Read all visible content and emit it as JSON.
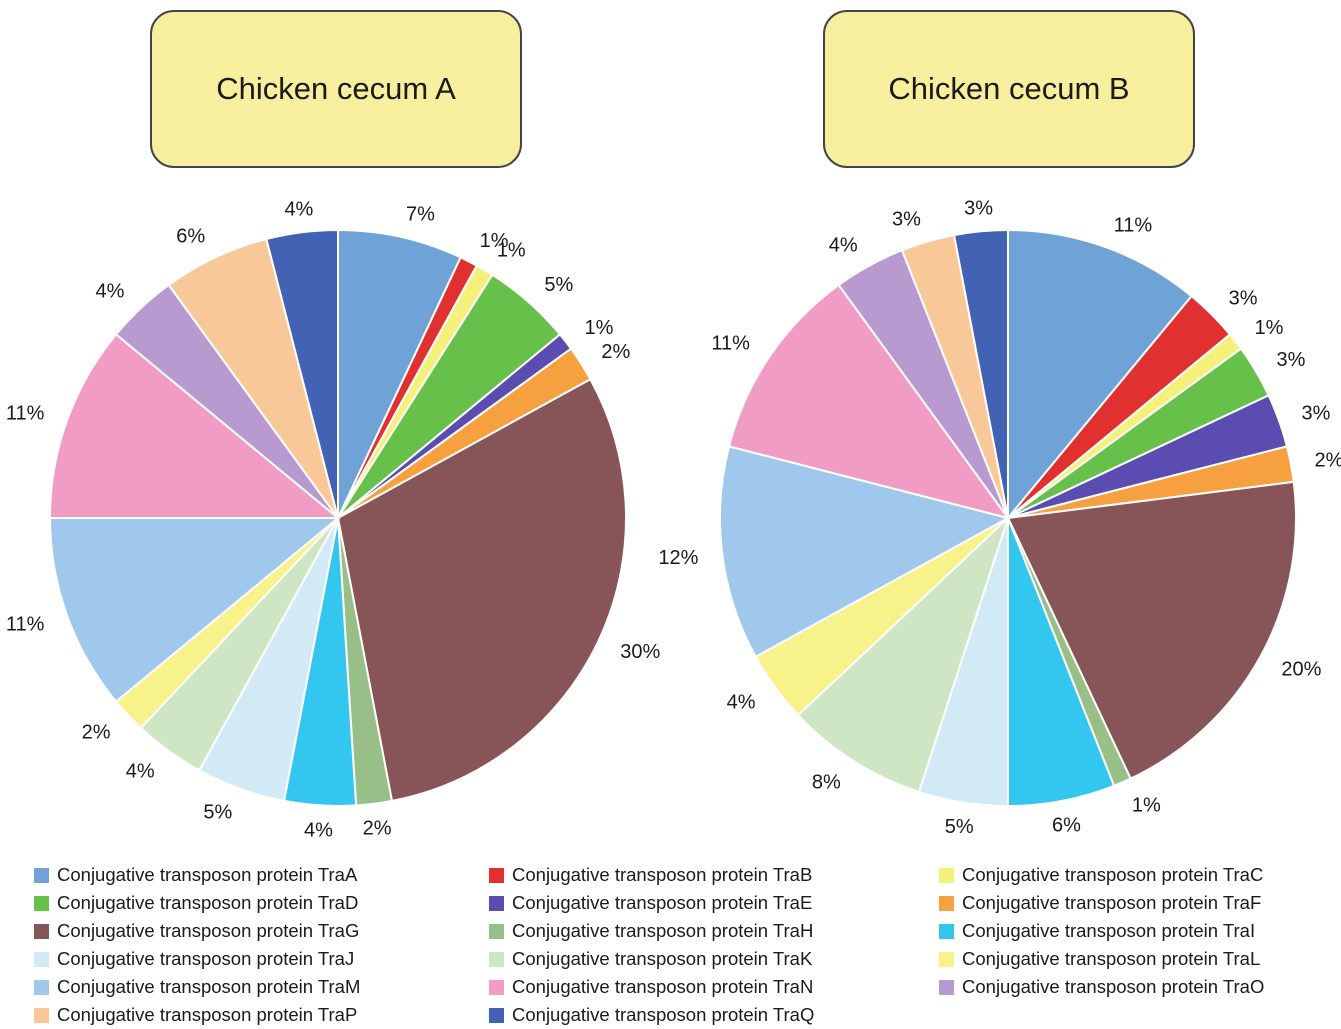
{
  "chart_data": [
    {
      "type": "pie",
      "title": "Chicken cecum A",
      "categories": [
        "Conjugative transposon protein TraA",
        "Conjugative transposon protein TraB",
        "Conjugative transposon protein TraC",
        "Conjugative transposon protein TraD",
        "Conjugative transposon protein TraE",
        "Conjugative transposon protein TraF",
        "Conjugative transposon protein TraG",
        "Conjugative transposon protein TraH",
        "Conjugative transposon protein TraI",
        "Conjugative transposon protein TraJ",
        "Conjugative transposon protein TraK",
        "Conjugative transposon protein TraL",
        "Conjugative transposon protein TraM",
        "Conjugative transposon protein TraN",
        "Conjugative transposon protein TraO",
        "Conjugative transposon protein TraP",
        "Conjugative transposon protein TraQ"
      ],
      "values": [
        7,
        1,
        1,
        5,
        1,
        2,
        30,
        2,
        4,
        5,
        4,
        2,
        11,
        11,
        4,
        6,
        4
      ],
      "labels": [
        "7%",
        "1%",
        "1%",
        "5%",
        "1%",
        "2%",
        "30%",
        "2%",
        "4%",
        "5%",
        "4%",
        "2%",
        "11%",
        "11%",
        "4%",
        "6%",
        "4%"
      ]
    },
    {
      "type": "pie",
      "title": "Chicken cecum B",
      "categories": [
        "Conjugative transposon protein TraA",
        "Conjugative transposon protein TraB",
        "Conjugative transposon protein TraC",
        "Conjugative transposon protein TraD",
        "Conjugative transposon protein TraE",
        "Conjugative transposon protein TraF",
        "Conjugative transposon protein TraG",
        "Conjugative transposon protein TraH",
        "Conjugative transposon protein TraI",
        "Conjugative transposon protein TraJ",
        "Conjugative transposon protein TraK",
        "Conjugative transposon protein TraL",
        "Conjugative transposon protein TraM",
        "Conjugative transposon protein TraN",
        "Conjugative transposon protein TraO",
        "Conjugative transposon protein TraP",
        "Conjugative transposon protein TraQ"
      ],
      "values": [
        11,
        3,
        1,
        3,
        3,
        2,
        20,
        1,
        6,
        5,
        8,
        4,
        12,
        11,
        4,
        3,
        3
      ],
      "labels": [
        "11%",
        "3%",
        "1%",
        "3%",
        "3%",
        "2%",
        "20%",
        "1%",
        "6%",
        "5%",
        "8%",
        "4%",
        "12%",
        "11%",
        "4%",
        "3%",
        "3%"
      ]
    }
  ],
  "colors": [
    "#6fa3d8",
    "#e03030",
    "#f5f07a",
    "#66c04a",
    "#5a4cb0",
    "#f7a040",
    "#875457",
    "#99bf88",
    "#33c6ee",
    "#d2eaf6",
    "#cfe6c4",
    "#f7f28a",
    "#a0c8ec",
    "#f09cc4",
    "#b89ad0",
    "#f9c898",
    "#4262b4"
  ],
  "legend": {
    "items": [
      {
        "label": "Conjugative transposon protein TraA",
        "color": "#6fa3d8"
      },
      {
        "label": "Conjugative transposon protein TraB",
        "color": "#e03030"
      },
      {
        "label": "Conjugative transposon protein TraC",
        "color": "#f5f07a"
      },
      {
        "label": "Conjugative transposon protein TraD",
        "color": "#66c04a"
      },
      {
        "label": "Conjugative transposon protein TraE",
        "color": "#5a4cb0"
      },
      {
        "label": "Conjugative transposon protein TraF",
        "color": "#f7a040"
      },
      {
        "label": "Conjugative transposon protein TraG",
        "color": "#875457"
      },
      {
        "label": "Conjugative transposon protein TraH",
        "color": "#99bf88"
      },
      {
        "label": "Conjugative transposon protein TraI",
        "color": "#33c6ee"
      },
      {
        "label": "Conjugative transposon protein TraJ",
        "color": "#d2eaf6"
      },
      {
        "label": "Conjugative transposon protein TraK",
        "color": "#cfe6c4"
      },
      {
        "label": "Conjugative transposon protein TraL",
        "color": "#f7f28a"
      },
      {
        "label": "Conjugative transposon protein TraM",
        "color": "#a0c8ec"
      },
      {
        "label": "Conjugative transposon protein TraN",
        "color": "#f09cc4"
      },
      {
        "label": "Conjugative transposon protein TraO",
        "color": "#b89ad0"
      },
      {
        "label": "Conjugative transposon protein TraP",
        "color": "#f9c898"
      },
      {
        "label": "Conjugative transposon protein TraQ",
        "color": "#4262b4"
      }
    ]
  }
}
